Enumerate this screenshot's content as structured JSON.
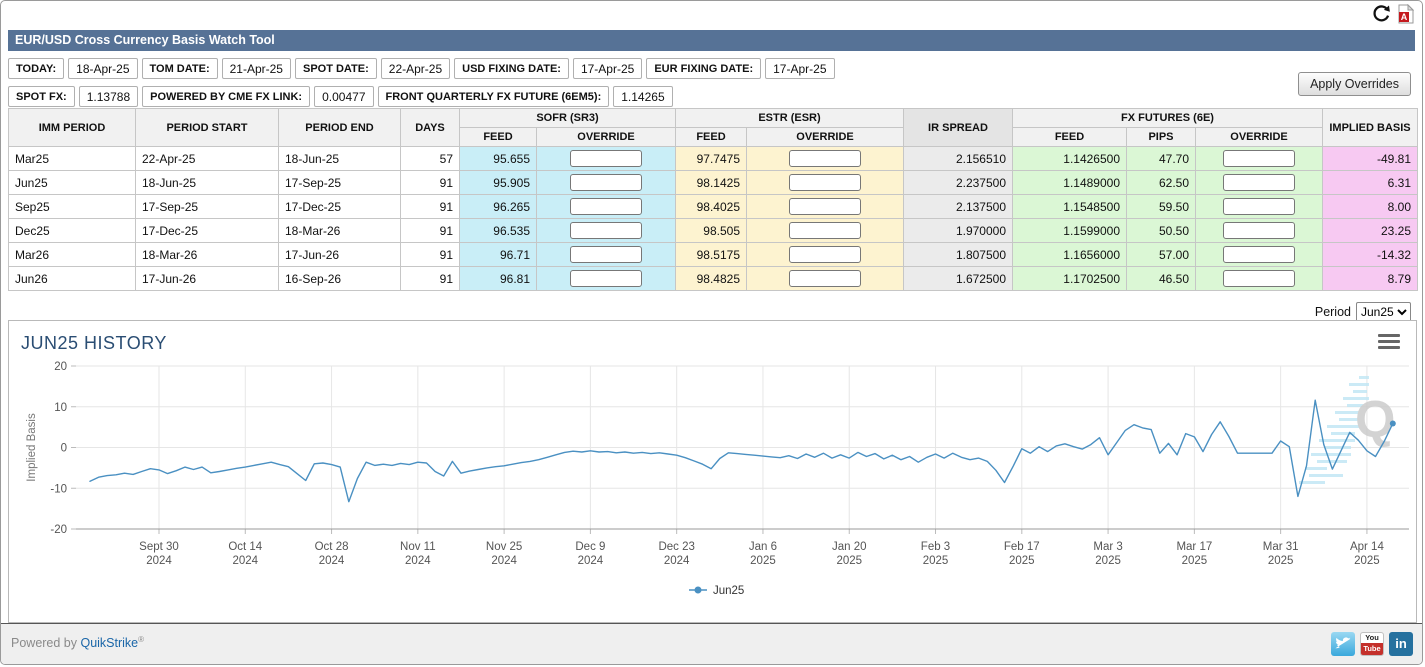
{
  "window": {
    "refresh_icon": "refresh",
    "pdf_icon": "pdf-export"
  },
  "header": {
    "title": "EUR/USD Cross Currency Basis Watch Tool"
  },
  "info_rows": {
    "dates": [
      {
        "label": "TODAY:",
        "value": "18-Apr-25"
      },
      {
        "label": "TOM DATE:",
        "value": "21-Apr-25"
      },
      {
        "label": "SPOT DATE:",
        "value": "22-Apr-25"
      },
      {
        "label": "USD FIXING DATE:",
        "value": "17-Apr-25"
      },
      {
        "label": "EUR FIXING DATE:",
        "value": "17-Apr-25"
      }
    ],
    "spot": [
      {
        "label": "SPOT FX:",
        "value": "1.13788"
      },
      {
        "label": "POWERED BY CME FX LINK:",
        "value": "0.00477"
      },
      {
        "label": "FRONT QUARTERLY FX FUTURE (6EM5):",
        "value": "1.14265"
      }
    ]
  },
  "apply_button": "Apply Overrides",
  "table": {
    "headers": {
      "imm": "IMM PERIOD",
      "start": "PERIOD START",
      "end": "PERIOD END",
      "days": "DAYS",
      "sofr_group": "SOFR (SR3)",
      "estr_group": "ESTR (ESR)",
      "fx_group": "FX FUTURES (6E)",
      "ir": "IR SPREAD",
      "implied": "IMPLIED BASIS",
      "feed": "FEED",
      "override": "OVERRIDE",
      "pips": "PIPS"
    },
    "rows": [
      {
        "imm": "Mar25",
        "start": "22-Apr-25",
        "end": "18-Jun-25",
        "days": "57",
        "sofr_feed": "95.655",
        "estr_feed": "97.7475",
        "ir_spread": "2.156510",
        "fx_feed": "1.1426500",
        "fx_pips": "47.70",
        "implied_basis": "-49.81"
      },
      {
        "imm": "Jun25",
        "start": "18-Jun-25",
        "end": "17-Sep-25",
        "days": "91",
        "sofr_feed": "95.905",
        "estr_feed": "98.1425",
        "ir_spread": "2.237500",
        "fx_feed": "1.1489000",
        "fx_pips": "62.50",
        "implied_basis": "6.31"
      },
      {
        "imm": "Sep25",
        "start": "17-Sep-25",
        "end": "17-Dec-25",
        "days": "91",
        "sofr_feed": "96.265",
        "estr_feed": "98.4025",
        "ir_spread": "2.137500",
        "fx_feed": "1.1548500",
        "fx_pips": "59.50",
        "implied_basis": "8.00"
      },
      {
        "imm": "Dec25",
        "start": "17-Dec-25",
        "end": "18-Mar-26",
        "days": "91",
        "sofr_feed": "96.535",
        "estr_feed": "98.505",
        "ir_spread": "1.970000",
        "fx_feed": "1.1599000",
        "fx_pips": "50.50",
        "implied_basis": "23.25"
      },
      {
        "imm": "Mar26",
        "start": "18-Mar-26",
        "end": "17-Jun-26",
        "days": "91",
        "sofr_feed": "96.71",
        "estr_feed": "98.5175",
        "ir_spread": "1.807500",
        "fx_feed": "1.1656000",
        "fx_pips": "57.00",
        "implied_basis": "-14.32"
      },
      {
        "imm": "Jun26",
        "start": "17-Jun-26",
        "end": "16-Sep-26",
        "days": "91",
        "sofr_feed": "96.81",
        "estr_feed": "98.4825",
        "ir_spread": "1.672500",
        "fx_feed": "1.1702500",
        "fx_pips": "46.50",
        "implied_basis": "8.79"
      }
    ],
    "override_placeholder": ""
  },
  "period_selector": {
    "label": "Period",
    "selected": "Jun25",
    "options": [
      "Jun25"
    ]
  },
  "chart_data": {
    "type": "line",
    "title": "JUN25 HISTORY",
    "ylabel": "Implied Basis",
    "ylim": [
      -20,
      20
    ],
    "yticks": [
      20,
      10,
      0,
      -10,
      -20
    ],
    "grid": true,
    "legend_position": "bottom-center",
    "x_tick_labels": [
      [
        "Sept 30",
        "2024"
      ],
      [
        "Oct 14",
        "2024"
      ],
      [
        "Oct 28",
        "2024"
      ],
      [
        "Nov 11",
        "2024"
      ],
      [
        "Nov 25",
        "2024"
      ],
      [
        "Dec 9",
        "2024"
      ],
      [
        "Dec 23",
        "2024"
      ],
      [
        "Jan 6",
        "2025"
      ],
      [
        "Jan 20",
        "2025"
      ],
      [
        "Feb 3",
        "2025"
      ],
      [
        "Feb 17",
        "2025"
      ],
      [
        "Mar 3",
        "2025"
      ],
      [
        "Mar 17",
        "2025"
      ],
      [
        "Mar 31",
        "2025"
      ],
      [
        "Apr 14",
        "2025"
      ]
    ],
    "x_tick_indices": [
      8,
      18,
      28,
      38,
      48,
      58,
      68,
      78,
      88,
      98,
      108,
      118,
      128,
      138,
      148
    ],
    "series": [
      {
        "name": "Jun25",
        "color": "#4a90c2",
        "values": [
          -8.3,
          -7.3,
          -6.9,
          -6.7,
          -6.3,
          -6.6,
          -5.9,
          -5.2,
          -5.5,
          -6.4,
          -5.7,
          -4.8,
          -5.4,
          -4.8,
          -6.2,
          -5.9,
          -5.5,
          -5.1,
          -4.8,
          -4.4,
          -4.0,
          -3.6,
          -4.2,
          -4.7,
          -6.4,
          -8.1,
          -4.0,
          -3.8,
          -4.2,
          -4.8,
          -13.3,
          -7.6,
          -3.6,
          -4.4,
          -4.1,
          -4.4,
          -3.9,
          -4.2,
          -3.6,
          -3.8,
          -5.9,
          -7.0,
          -3.4,
          -6.3,
          -5.8,
          -5.4,
          -5.0,
          -4.7,
          -4.5,
          -4.1,
          -3.7,
          -3.4,
          -3.0,
          -2.4,
          -1.8,
          -1.2,
          -0.9,
          -1.1,
          -0.8,
          -1.1,
          -1.0,
          -1.3,
          -1.1,
          -1.4,
          -1.2,
          -1.5,
          -1.3,
          -1.6,
          -1.9,
          -2.5,
          -3.3,
          -4.1,
          -5.2,
          -2.7,
          -1.3,
          -1.5,
          -1.7,
          -1.9,
          -2.1,
          -2.3,
          -2.5,
          -2.0,
          -2.7,
          -1.6,
          -2.4,
          -1.4,
          -2.6,
          -1.8,
          -2.6,
          -1.2,
          -2.2,
          -1.5,
          -2.8,
          -1.9,
          -3.0,
          -2.2,
          -3.6,
          -2.4,
          -1.6,
          -2.6,
          -1.4,
          -2.4,
          -3.0,
          -2.6,
          -3.4,
          -5.6,
          -8.6,
          -4.6,
          -0.3,
          -1.4,
          0.2,
          -1.0,
          0.4,
          0.9,
          0.2,
          -0.4,
          0.7,
          2.4,
          -1.8,
          1.2,
          4.2,
          5.6,
          4.8,
          4.4,
          -1.4,
          1.0,
          -1.8,
          3.4,
          2.6,
          -1.0,
          3.2,
          6.3,
          2.7,
          -1.4,
          -1.4,
          -1.4,
          -1.4,
          -1.4,
          1.6,
          0.2,
          -12.0,
          -4.5,
          11.6,
          0.7,
          -5.3,
          -0.8,
          3.7,
          1.8,
          -0.8,
          -2.2,
          1.5,
          5.9
        ]
      }
    ]
  },
  "footer": {
    "powered_prefix": "Powered by ",
    "brand": "QuikStrike",
    "registered": "®",
    "youtube_top": "You",
    "youtube_bottom": "Tube",
    "linkedin_text": "in"
  },
  "colors": {
    "header_bar": "#567296",
    "sofr_bg": "#c9eef7",
    "estr_bg": "#fdf3d0",
    "ir_bg": "#ebebeb",
    "fx_bg": "#dbf7d5",
    "implied_bg": "#f7c9f2",
    "series": "#4a90c2",
    "chart_title": "#2a4d73",
    "link": "#1a66a8"
  }
}
